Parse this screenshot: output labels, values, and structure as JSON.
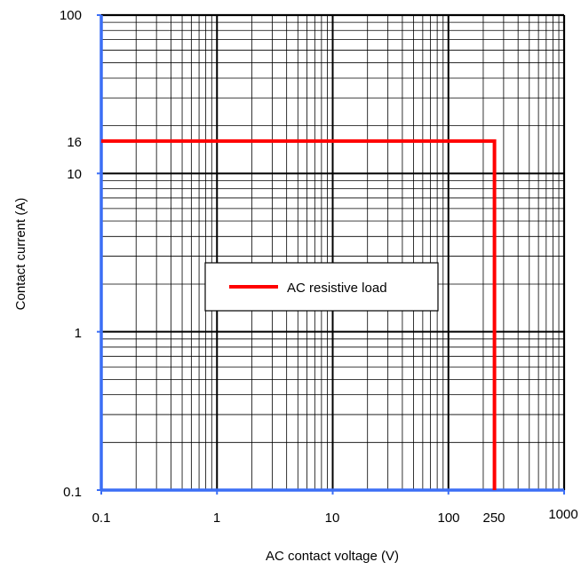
{
  "chart_data": {
    "type": "line",
    "xlabel": "AC contact voltage (V)",
    "ylabel": "Contact current (A)",
    "x_scale": "log",
    "y_scale": "log",
    "xlim": [
      0.1,
      1000
    ],
    "ylim": [
      0.1,
      100
    ],
    "x_tick_labels": [
      "0.1",
      "1",
      "10",
      "100",
      "250",
      "1000"
    ],
    "y_tick_labels": [
      "100",
      "16",
      "10",
      "1",
      "0.1"
    ],
    "grid": true,
    "legend_position": "center-left",
    "series": [
      {
        "name": "AC resistive load",
        "color": "#ff0000",
        "x": [
          0.1,
          250,
          250
        ],
        "y": [
          16,
          16,
          0.1
        ]
      }
    ],
    "colors": {
      "axis": "#3b6ef5",
      "grid": "#000000",
      "series": "#ff0000"
    }
  }
}
